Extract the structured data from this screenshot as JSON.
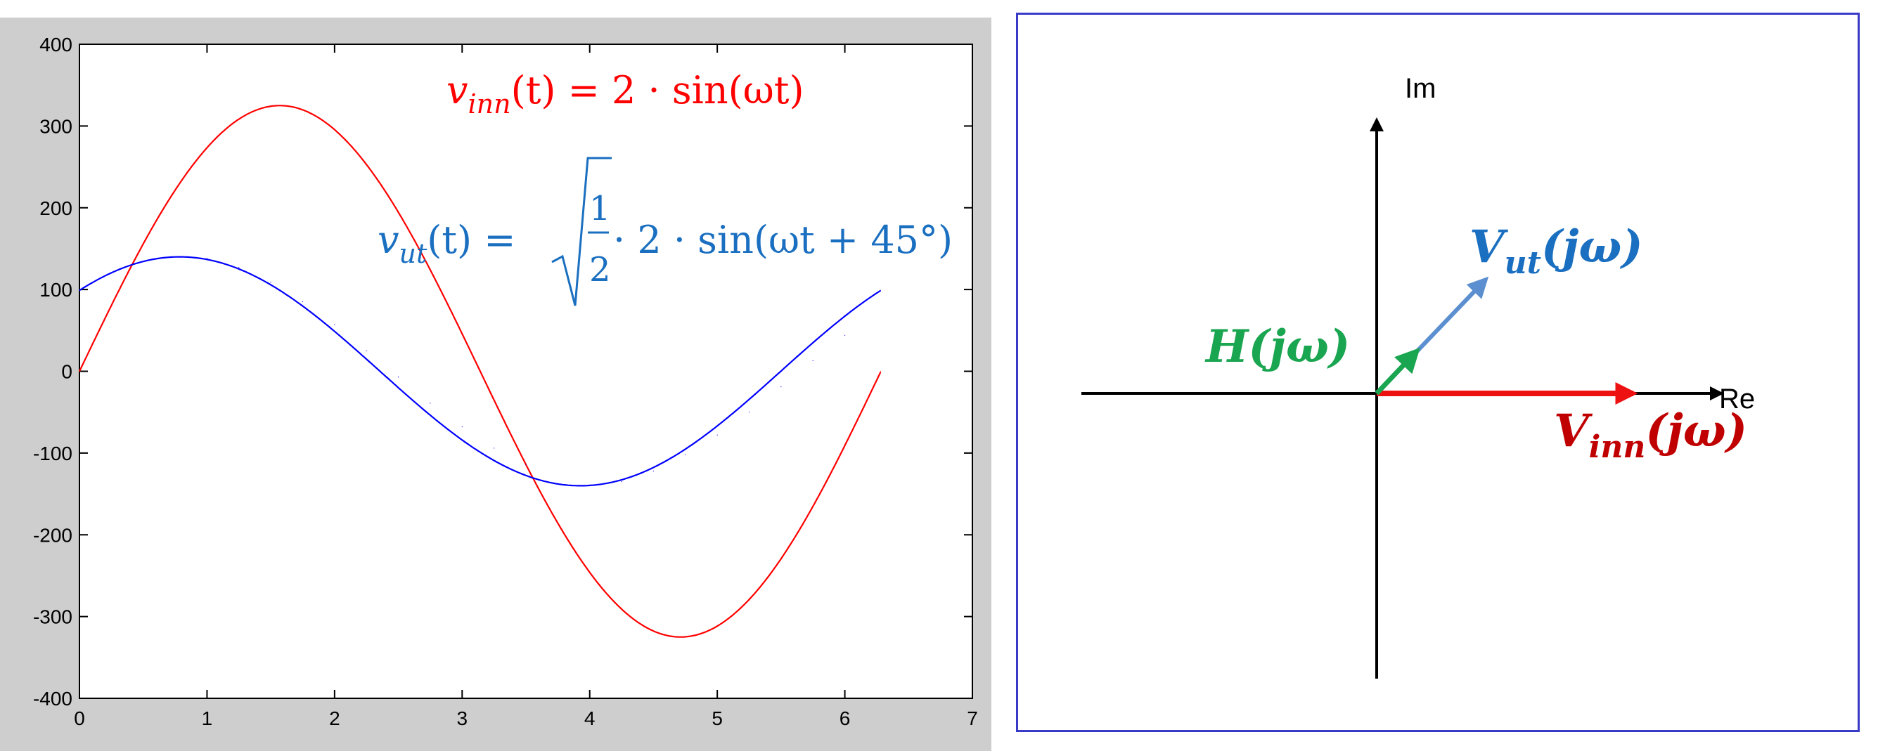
{
  "chart_data": {
    "type": "line",
    "x_ticks": [
      "0",
      "1",
      "2",
      "3",
      "4",
      "5",
      "6",
      "7"
    ],
    "y_ticks": [
      "400",
      "300",
      "200",
      "100",
      "0",
      "-100",
      "-200",
      "-300",
      "-400"
    ],
    "xlim": [
      0,
      7
    ],
    "ylim": [
      -400,
      400
    ],
    "grid": false,
    "series": [
      {
        "color": "#ff0000",
        "amplitude": 325,
        "phase_deg": 0,
        "x": [
          0,
          0.25,
          0.5,
          0.75,
          1,
          1.25,
          1.5,
          1.57,
          1.75,
          2,
          2.25,
          2.5,
          2.75,
          3,
          3.14,
          3.25,
          3.5,
          3.75,
          4,
          4.25,
          4.5,
          4.71,
          5,
          5.25,
          5.5,
          5.75,
          6,
          6.28
        ],
        "y": [
          0,
          80,
          156,
          222,
          273,
          308,
          324,
          325,
          320,
          296,
          253,
          194,
          124,
          46,
          0,
          -35,
          -114,
          -186,
          -246,
          -291,
          -318,
          -325,
          -311,
          -278,
          -229,
          -165,
          -91,
          0
        ]
      },
      {
        "color": "#0000ff",
        "amplitude": 140,
        "phase_deg": 45,
        "x": [
          0,
          0.25,
          0.5,
          0.785,
          1,
          1.25,
          1.5,
          1.75,
          2,
          2.25,
          2.5,
          2.75,
          3,
          3.25,
          3.5,
          3.93,
          4.25,
          4.5,
          4.75,
          5,
          5.25,
          5.5,
          5.75,
          6,
          6.28
        ],
        "y": [
          99,
          120,
          134,
          140,
          138,
          127,
          109,
          85,
          57,
          25,
          -7,
          -39,
          -68,
          -94,
          -114,
          -140,
          -135,
          -122,
          -102,
          -78,
          -50,
          -19,
          13,
          44,
          99
        ]
      }
    ]
  },
  "equations": {
    "vin": {
      "v": "v",
      "sub": "inn",
      "rest": "(t) = 2 · sin(ωt)",
      "color": "#ff0000"
    },
    "vut": {
      "v": "v",
      "sub": "ut",
      "lhs_rest": "(t) = ",
      "frac_num": "1",
      "frac_den": "2",
      "rhs": "· 2 · sin(ωt + 45°)",
      "color": "#1a6fc0"
    }
  },
  "phasor": {
    "axis_im": "Im",
    "axis_re": "Re",
    "h_label": {
      "main": "H",
      "rest": "(jω)",
      "color": "#1aa550"
    },
    "vut_label": {
      "main": "V",
      "sub": "ut",
      "rest": "(jω)",
      "color": "#1a6fc0"
    },
    "vinn_label": {
      "main": "V",
      "sub": "inn",
      "rest": "(jω)",
      "color": "#c00000"
    },
    "colors": {
      "axis": "#000000",
      "vinn_arrow": "#ee1111",
      "vut_arrow": "#5b8fd0",
      "h_arrow": "#1aa550"
    }
  }
}
